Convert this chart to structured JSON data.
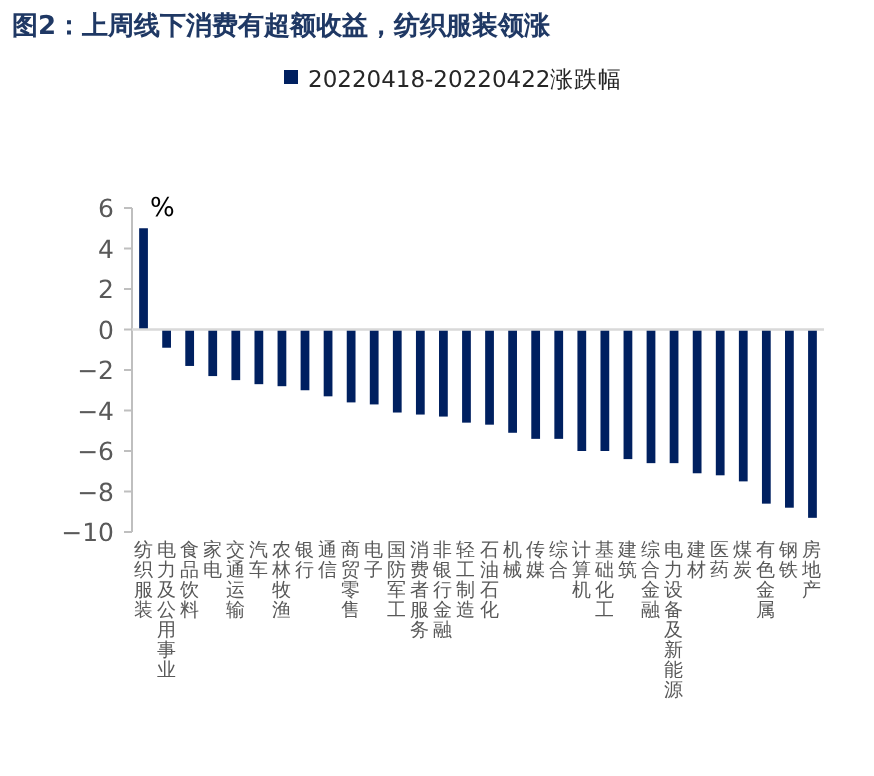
{
  "chart_data": {
    "type": "bar",
    "title": "图2：上周线下消费有超额收益，纺织服装领涨",
    "ylabel": "%",
    "legend": "top",
    "categories": [
      "纺织服装",
      "电力及公用事业",
      "食品饮料",
      "家电",
      "交通运输",
      "汽车",
      "农林牧渔",
      "银行",
      "通信",
      "商贸零售",
      "电子",
      "国防军工",
      "消费者服务",
      "非银行金融",
      "轻工制造",
      "石油石化",
      "机械",
      "传媒",
      "综合",
      "计算机",
      "基础化工",
      "建筑",
      "综合金融",
      "电力设备及新能源",
      "建材",
      "医药",
      "煤炭",
      "有色金属",
      "钢铁",
      "房地产"
    ],
    "series": [
      {
        "name": "20220418-20220422涨跌幅",
        "color": "#002060",
        "values": [
          5.0,
          -0.9,
          -1.8,
          -2.3,
          -2.5,
          -2.7,
          -2.8,
          -3.0,
          -3.3,
          -3.6,
          -3.7,
          -4.1,
          -4.2,
          -4.3,
          -4.6,
          -4.7,
          -5.1,
          -5.4,
          -5.4,
          -6.0,
          -6.0,
          -6.4,
          -6.6,
          -6.6,
          -7.1,
          -7.2,
          -7.5,
          -8.6,
          -8.8,
          -9.3
        ]
      }
    ],
    "ylim": [
      -10,
      6
    ],
    "yticks": [
      -10,
      -8,
      -6,
      -4,
      -2,
      0,
      2,
      4,
      6
    ]
  }
}
